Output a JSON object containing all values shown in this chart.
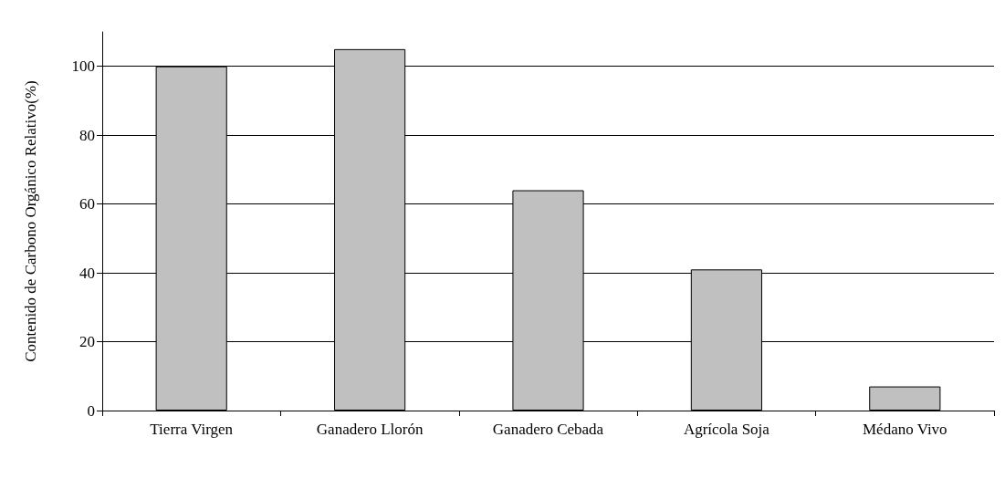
{
  "chart_data": {
    "type": "bar",
    "ylabel": "Contenido de Carbono Orgánico Relativo(%)",
    "categories": [
      "Tierra Virgen",
      "Ganadero Llorón",
      "Ganadero Cebada",
      "Agrícola Soja",
      "Médano Vivo"
    ],
    "values": [
      100,
      105,
      64,
      41,
      7
    ],
    "color": "#c0c0c0",
    "ylim": [
      0,
      110
    ],
    "yticks": [
      0,
      20,
      40,
      60,
      80,
      100
    ],
    "grid": "y"
  }
}
